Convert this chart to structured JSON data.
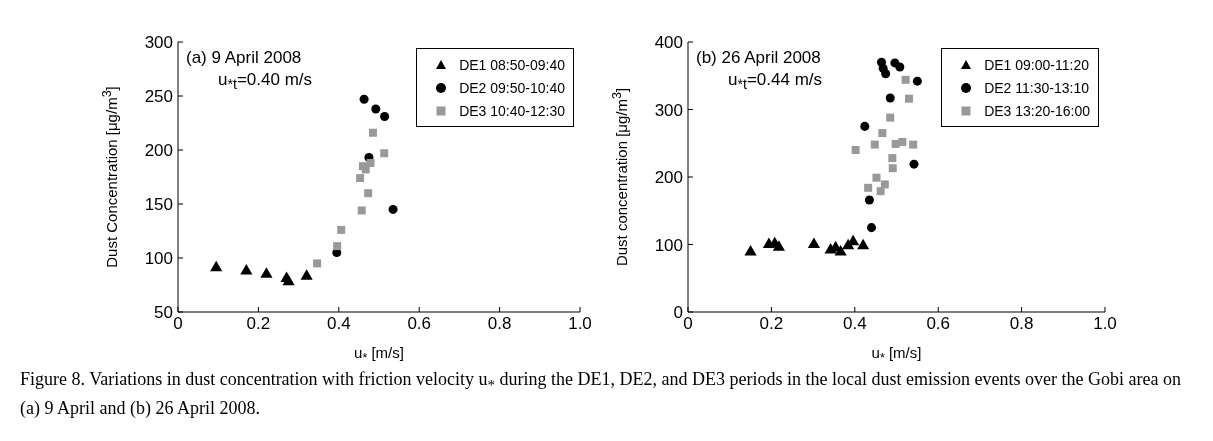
{
  "chart_data": [
    {
      "type": "scatter",
      "xlabel": "u$_{*}$ [m/s]",
      "ylabel": "Dust Concentration [μg/m$^{3}$]",
      "xlim": [
        0,
        1
      ],
      "xticks": [
        0,
        0.2,
        0.4,
        0.6,
        0.8,
        {
          "value": 1,
          "label": "1.0"
        }
      ],
      "ylim": [
        50,
        300
      ],
      "yticks": [
        50,
        100,
        150,
        200,
        250,
        300
      ],
      "legend": "top right",
      "annotations": [
        "(a) 9 April 2008",
        "u$_{*t}$=0.40 m/s",
        "Figure 8.   Variations in dust concentration with friction velocity u$_{*}$ during the DE1, DE2, and DE3 periods in the local dust emission events over the Gobi area on (a) 9 April and (b) 26 April 2008."
      ],
      "series": [
        {
          "name": "DE1 08:50-09:40",
          "color": "#000000",
          "marker": "triangle",
          "x": [
            0.095,
            0.17,
            0.22,
            0.27,
            0.275,
            0.32
          ],
          "values": [
            91,
            88,
            85,
            81,
            78,
            83
          ]
        },
        {
          "name": "DE2 09:50-10:40",
          "color": "#000000",
          "marker": "circle",
          "x": [
            0.463,
            0.492,
            0.514,
            0.475,
            0.535,
            0.395
          ],
          "values": [
            247,
            238,
            231,
            193,
            145,
            105
          ]
        },
        {
          "name": "DE3 10:40-12:30",
          "color": "#999999",
          "marker": "square",
          "x": [
            0.485,
            0.513,
            0.46,
            0.479,
            0.467,
            0.453,
            0.473,
            0.457,
            0.406,
            0.396,
            0.346
          ],
          "values": [
            216,
            197,
            185,
            188,
            182,
            174,
            160,
            144,
            126,
            111,
            95
          ]
        }
      ]
    },
    {
      "type": "scatter",
      "xlabel": "u$_{*}$ [m/s]",
      "ylabel": "Dust concentration [μg/m$^{3}$]",
      "xlim": [
        0,
        1
      ],
      "xticks": [
        0,
        0.2,
        0.4,
        0.6,
        0.8,
        {
          "value": 1,
          "label": "1.0"
        }
      ],
      "ylim": [
        0,
        400
      ],
      "yticks": [
        0,
        100,
        200,
        300,
        400
      ],
      "legend": "top right",
      "annotations": [
        "(b) 26 April 2008",
        "u$_{*t}$=0.44 m/s"
      ],
      "series": [
        {
          "name": "DE1 09:00-11:20",
          "color": "#000000",
          "marker": "triangle",
          "x": [
            0.15,
            0.194,
            0.208,
            0.218,
            0.302,
            0.342,
            0.354,
            0.366,
            0.384,
            0.396,
            0.42
          ],
          "values": [
            89,
            100,
            101,
            96,
            100,
            92,
            95,
            89,
            98,
            104,
            98
          ]
        },
        {
          "name": "DE2 11:30-13:10",
          "color": "#000000",
          "marker": "circle",
          "x": [
            0.464,
            0.468,
            0.474,
            0.496,
            0.508,
            0.55,
            0.485,
            0.424,
            0.542,
            0.435,
            0.44
          ],
          "values": [
            370,
            361,
            353,
            369,
            363,
            342,
            317,
            275,
            219,
            166,
            125
          ]
        },
        {
          "name": "DE3 13:20-16:00",
          "color": "#999999",
          "marker": "square",
          "x": [
            0.522,
            0.53,
            0.485,
            0.466,
            0.402,
            0.448,
            0.498,
            0.514,
            0.54,
            0.49,
            0.491,
            0.452,
            0.432,
            0.472,
            0.462
          ],
          "values": [
            344,
            316,
            288,
            265,
            240,
            248,
            249,
            252,
            248,
            228,
            213,
            199,
            184,
            189,
            179
          ]
        }
      ]
    }
  ]
}
